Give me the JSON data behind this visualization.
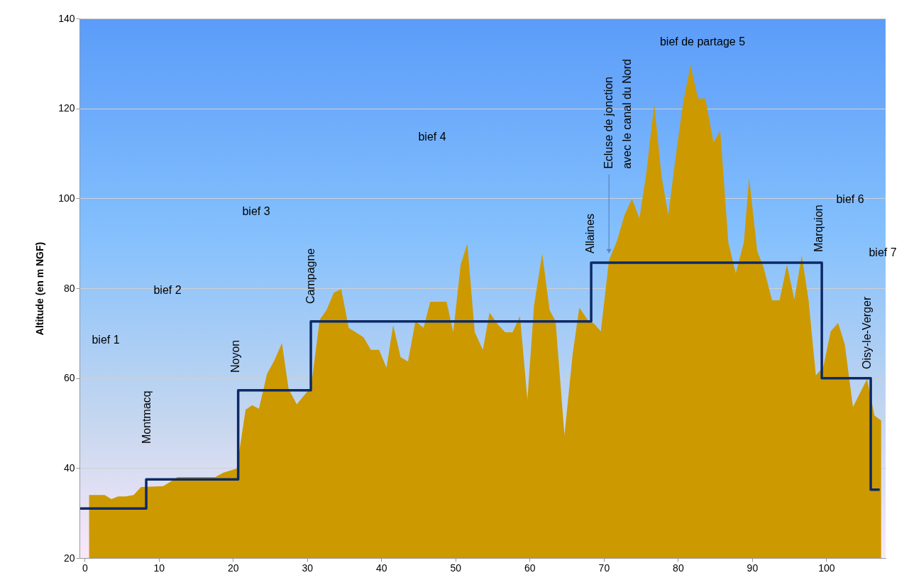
{
  "chart_data": {
    "type": "area",
    "ylabel": "Altitude (en m NGF)",
    "xlim": [
      -0.7,
      108
    ],
    "ylim": [
      20,
      140
    ],
    "xticks": [
      0,
      10,
      20,
      30,
      40,
      50,
      60,
      70,
      80,
      90,
      100
    ],
    "yticks": [
      20,
      40,
      60,
      80,
      100,
      120,
      140
    ],
    "grid": "y",
    "series": [
      {
        "type": "area",
        "color": "#cc9900",
        "x": [
          0.6,
          2.7,
          3.6,
          4.5,
          5.5,
          6.6,
          7.6,
          10.6,
          11.8,
          12.5,
          17.6,
          18.7,
          20.5,
          21.7,
          22.6,
          23.5,
          24.6,
          25.6,
          26.6,
          27.5,
          28.6,
          29.9,
          30.5,
          31.7,
          32.6,
          33.6,
          34.6,
          35.6,
          37.6,
          38.6,
          39.7,
          40.7,
          41.6,
          42.6,
          43.6,
          44.6,
          45.7,
          46.6,
          48.8,
          49.7,
          50.7,
          51.6,
          52.6,
          53.7,
          54.6,
          55.7,
          56.7,
          57.7,
          58.7,
          59.7,
          60.6,
          61.7,
          62.7,
          63.5,
          64.7,
          65.8,
          66.7,
          67.8,
          68.7,
          69.6,
          70.7,
          71.8,
          72.8,
          73.8,
          74.8,
          75.7,
          76.8,
          77.8,
          78.7,
          79.7,
          80.7,
          81.7,
          82.7,
          83.7,
          84.8,
          85.7,
          86.8,
          87.8,
          88.9,
          89.6,
          90.7,
          91.5,
          92.7,
          93.7,
          94.7,
          95.7,
          96.7,
          97.6,
          98.6,
          99.6,
          100.6,
          101.6,
          102.5,
          103.6,
          105.5,
          106.5,
          107.4
        ],
        "values": [
          34,
          34,
          33.1,
          33.7,
          33.7,
          34,
          35.8,
          36,
          37.2,
          38,
          38,
          39,
          39.9,
          53,
          54,
          53.2,
          61,
          64,
          67.8,
          57.6,
          54.2,
          56.8,
          57.7,
          73,
          75.1,
          79,
          79.8,
          71.2,
          69.1,
          66.3,
          66.3,
          62.3,
          71.8,
          64.7,
          63.7,
          72.7,
          71.2,
          77,
          77,
          70.2,
          85.2,
          89.9,
          70.2,
          66.3,
          74.6,
          72,
          70.2,
          70.2,
          73.8,
          55.2,
          76.2,
          87.7,
          75.1,
          72.7,
          47.3,
          65.3,
          75.7,
          73,
          72.1,
          70.4,
          86.2,
          90.6,
          96.3,
          99.9,
          95.5,
          105.1,
          120.9,
          104.8,
          96.3,
          109.3,
          121.2,
          129.7,
          122.2,
          122.2,
          112.4,
          115.1,
          90.1,
          83.3,
          90.3,
          104.6,
          88.2,
          84.9,
          77.3,
          77.3,
          85.2,
          77.5,
          87.3,
          77.5,
          60.6,
          62.5,
          70.4,
          72.3,
          67.5,
          53.6,
          59.8,
          51.7,
          50.6
        ]
      },
      {
        "type": "step",
        "color": "#0d2a66",
        "x": [
          -0.6,
          8.3,
          20.7,
          30.5,
          68.3,
          99.4,
          106,
          107.2
        ],
        "values": [
          31,
          37.5,
          57.3,
          72.6,
          85.7,
          60,
          35.2,
          35.2
        ]
      }
    ],
    "annotations": [
      "bief 1",
      "bief 2",
      "bief 3",
      "bief 4",
      "bief de partage 5",
      "bief 6",
      "bief 7",
      "Montmacq",
      "Noyon",
      "Campagne",
      "Allaines",
      {
        "text": "Ecluse de jonction\navec le canal du Nord",
        "x": 70.7,
        "y": 87.6
      },
      "Marquion",
      "Oisy-le-Verger"
    ]
  }
}
